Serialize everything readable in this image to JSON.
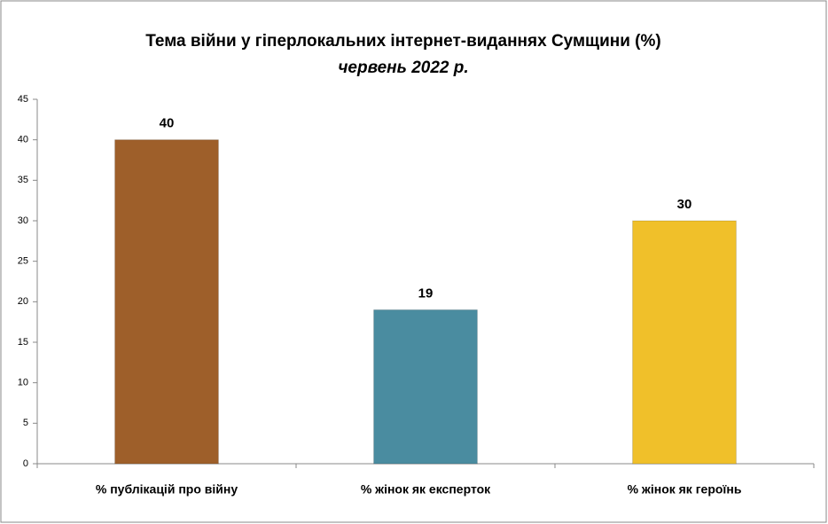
{
  "chart_data": {
    "type": "bar",
    "title": "Тема війни у гіперлокальних інтернет-виданнях Сумщини (%)",
    "subtitle": "червень 2022 р.",
    "categories": [
      "% публікацій про війну",
      "% жінок як експерток",
      "% жінок як героїнь"
    ],
    "values": [
      40,
      19,
      30
    ],
    "colors": [
      "#9e5f2a",
      "#4a8ca0",
      "#f0c02a"
    ],
    "ylim": [
      0,
      45
    ],
    "yticks": [
      0,
      5,
      10,
      15,
      20,
      25,
      30,
      35,
      40,
      45
    ],
    "grid": false
  }
}
